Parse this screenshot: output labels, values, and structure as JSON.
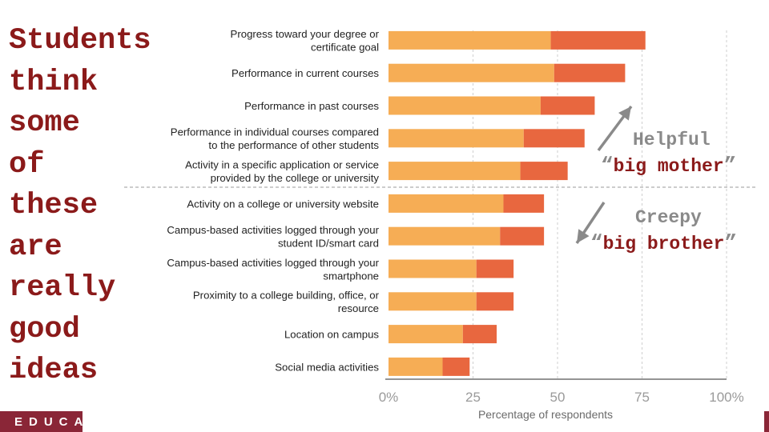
{
  "headline": {
    "words": [
      "Students",
      "think",
      "some",
      "of",
      "these",
      "are",
      "really",
      "good",
      "ideas"
    ]
  },
  "brand": {
    "text": "EDUCAU",
    "color": "#8a2637"
  },
  "annotations": {
    "helpful": {
      "title": "Helpful",
      "quote_open": "“",
      "subtitle": "big mother",
      "quote_close": "”"
    },
    "creepy": {
      "title": "Creepy",
      "quote_open": "“",
      "subtitle": "big brother",
      "quote_close": "”"
    },
    "arrow_color": "#8a8a8a"
  },
  "chart_data": {
    "type": "bar",
    "orientation": "horizontal",
    "stacked": true,
    "categories": [
      [
        "Progress toward your degree or",
        "certificate goal"
      ],
      [
        "Performance in current courses"
      ],
      [
        "Performance in past courses"
      ],
      [
        "Performance in individual courses compared",
        "to the performance of other students"
      ],
      [
        "Activity in a specific application or service",
        "provided by the college or university"
      ],
      [
        "Activity on a college or university website"
      ],
      [
        "Campus-based activities logged through your",
        "student ID/smart card"
      ],
      [
        "Campus-based activities logged through your",
        "smartphone"
      ],
      [
        "Proximity to a college building, office, or",
        "resource"
      ],
      [
        "Location on campus"
      ],
      [
        "Social media activities"
      ]
    ],
    "series": [
      {
        "color": "#f6ad55",
        "values": [
          48,
          49,
          45,
          40,
          39,
          34,
          33,
          26,
          26,
          22,
          16
        ]
      },
      {
        "color": "#e8673f",
        "values": [
          28,
          21,
          16,
          18,
          14,
          12,
          13,
          11,
          11,
          10,
          8
        ]
      }
    ],
    "xlim": [
      0,
      100
    ],
    "xticks": [
      "0%",
      "25",
      "50",
      "75",
      "100%"
    ],
    "xlabel": "Percentage of respondents",
    "grid": true,
    "divider_after_index": 4
  }
}
